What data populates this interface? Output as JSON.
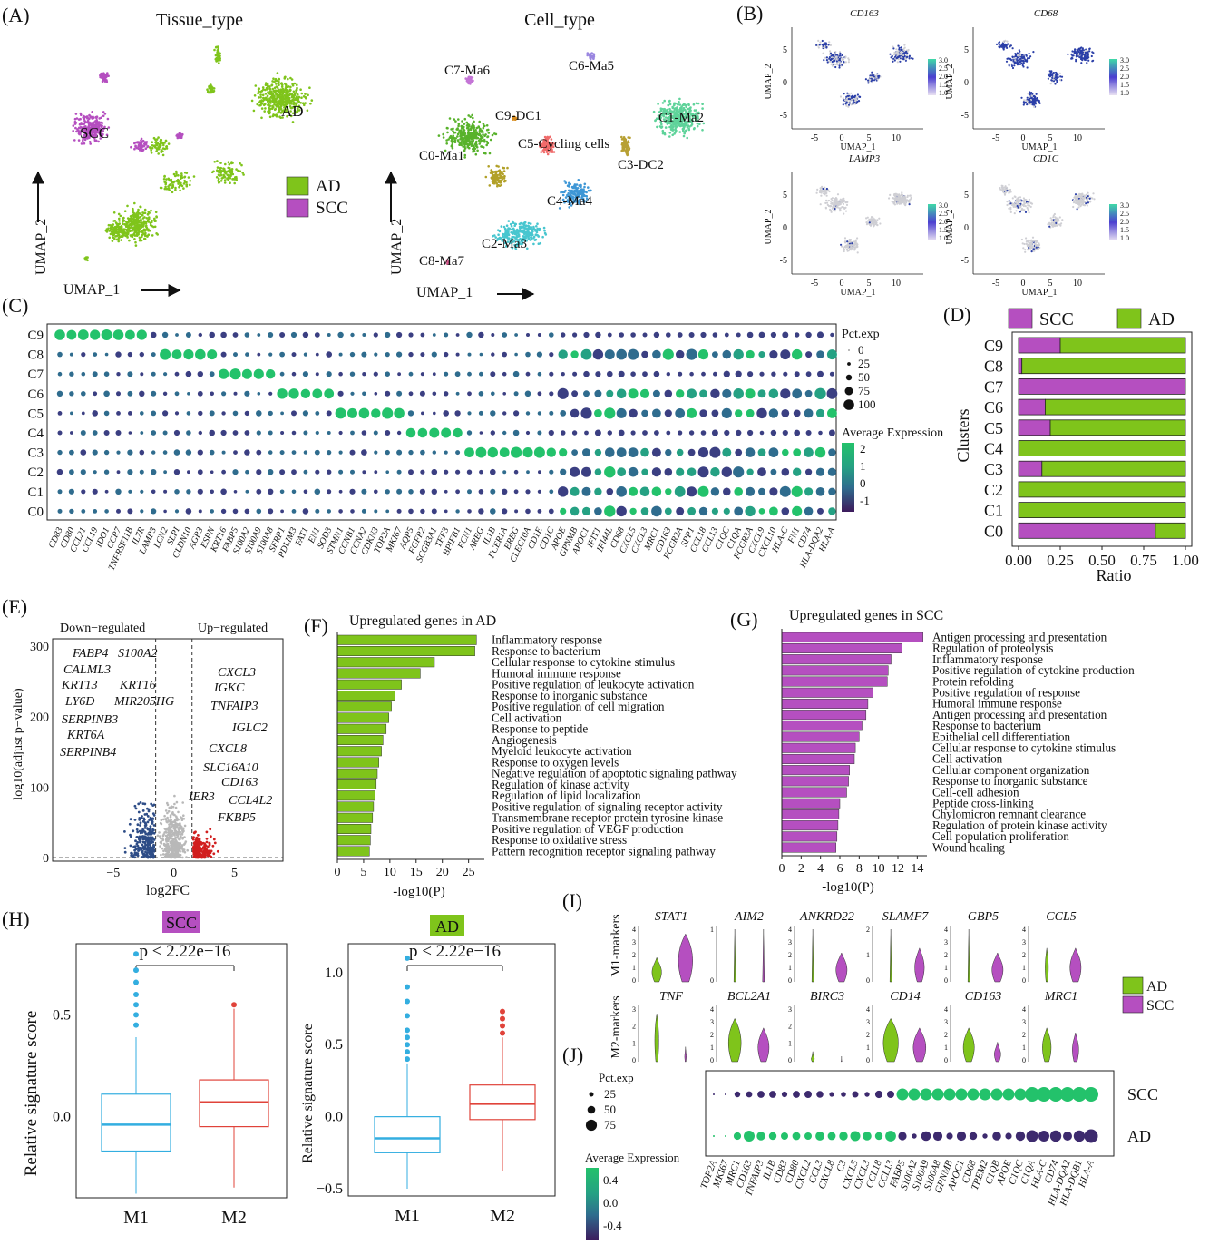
{
  "figure": {
    "panel_labels": [
      "(A)",
      "(B)",
      "(C)",
      "(D)",
      "(E)",
      "(F)",
      "(G)",
      "(H)",
      "(I)",
      "(J)"
    ]
  },
  "colors": {
    "ad": "#7fc41b",
    "scc": "#b54fc0",
    "ad_dark": "#5a8f10",
    "box_m1": "#33aee0",
    "box_m2": "#e0433a",
    "down": "#2e4d87",
    "up": "#d11f1f",
    "ns": "#b8b8b8"
  },
  "chart_data": [
    {
      "id": "A1",
      "type": "scatter",
      "title": "Tissue_type",
      "xlabel": "UMAP_1",
      "ylabel": "UMAP_2",
      "legend": [
        {
          "name": "AD",
          "color": "#7fc41b"
        },
        {
          "name": "SCC",
          "color": "#b54fc0"
        }
      ],
      "annotations": [
        "AD",
        "SCC"
      ]
    },
    {
      "id": "A2",
      "type": "scatter",
      "title": "Cell_type",
      "xlabel": "UMAP_1",
      "ylabel": "UMAP_2",
      "annotations": [
        "C7-Ma6",
        "C6-Ma5",
        "C9-DC1",
        "C1-Ma2",
        "C5-Cycling cells",
        "C0-Ma1",
        "C3-DC2",
        "C4-Ma4",
        "C2-Ma3",
        "C8-Ma7"
      ]
    },
    {
      "id": "B",
      "type": "scatter",
      "panels": [
        {
          "gene": "CD163",
          "shows_xlabel": true,
          "shows_ylabel": true,
          "ratio_shown": 0.5
        },
        {
          "gene": "CD68",
          "shows_xlabel": true,
          "shows_ylabel": true,
          "ratio_shown": 0.85
        },
        {
          "gene": "LAMP3",
          "shows_xlabel": true,
          "shows_ylabel": true,
          "ratio_shown": 0.05
        },
        {
          "gene": "CD1C",
          "shows_xlabel": true,
          "shows_ylabel": true,
          "ratio_shown": 0.1
        }
      ],
      "xlabel": "UMAP_1",
      "ylabel": "UMAP_2",
      "x_ticks": [
        "-5",
        "0",
        "5",
        "10"
      ],
      "y_ticks": [
        "5",
        "0",
        "-5"
      ],
      "colorbar_ticks": [
        "3.0",
        "2.5",
        "2.0",
        "1.5",
        "1.0"
      ]
    },
    {
      "id": "C",
      "type": "scatter",
      "subtype": "dotplot",
      "clusters": [
        "C9",
        "C8",
        "C7",
        "C6",
        "C5",
        "C4",
        "C3",
        "C2",
        "C1",
        "C0"
      ],
      "genes": [
        "CD83",
        "CD80",
        "CCL21",
        "CCL19",
        "IDO1",
        "CCR7",
        "TNFRSF11B",
        "IL7R",
        "LAMP3",
        "LCN2",
        "SLPI",
        "CLDN10",
        "AGR3",
        "ESPN",
        "KRT16",
        "FABP5",
        "S100A2",
        "S100A9",
        "S100A8",
        "SFRP1",
        "PDLIM3",
        "FAT1",
        "EN1",
        "SOD3",
        "STMN1",
        "CCNB1",
        "CCNA2",
        "CDKN3",
        "TOP2A",
        "MKI67",
        "AQP5",
        "FGFR2",
        "SCGB3A1",
        "TFF3",
        "BPIFB1",
        "FCN1",
        "AREG",
        "IL1B",
        "FCER1A",
        "EREG",
        "CLEC10A",
        "CD1E",
        "CD1C",
        "APOE",
        "GPNMB",
        "APOC1",
        "IFIT1",
        "IFI44L",
        "CD68",
        "CXCL5",
        "CXCL3",
        "MRC1",
        "CD163",
        "FCGR2A",
        "SPP1",
        "CCL18",
        "CCL13",
        "C1QC",
        "C1QA",
        "FCGR3A",
        "CXCL9",
        "CXCL10",
        "HLA-C",
        "FN1",
        "CD74",
        "HLA-DQA2",
        "HLA-A"
      ],
      "legend_size_title": "Pct.exp",
      "legend_size_values": [
        "0",
        "25",
        "50",
        "75",
        "100"
      ],
      "legend_color_title": "Average Expression",
      "legend_color_ticks": [
        "2",
        "1",
        "0",
        "-1"
      ]
    },
    {
      "id": "D",
      "type": "bar",
      "orientation": "horizontal",
      "stacked": true,
      "categories": [
        "C9",
        "C8",
        "C7",
        "C6",
        "C5",
        "C4",
        "C3",
        "C2",
        "C1",
        "C0"
      ],
      "series": [
        {
          "name": "SCC",
          "values": [
            0.25,
            0.02,
            1.0,
            0.16,
            0.19,
            0.0,
            0.14,
            0.0,
            0.0,
            0.82
          ]
        },
        {
          "name": "AD",
          "values": [
            0.75,
            0.98,
            0.0,
            0.84,
            0.81,
            1.0,
            0.86,
            1.0,
            1.0,
            0.18
          ]
        }
      ],
      "xlabel": "Ratio",
      "ylabel": "Clusters",
      "x_ticks": [
        "0.00",
        "0.25",
        "0.50",
        "0.75",
        "1.00"
      ],
      "xlim": [
        0,
        1
      ]
    },
    {
      "id": "E",
      "type": "scatter",
      "subtype": "volcano",
      "xlabel": "log2FC",
      "ylabel": "log10(adjust p−value)",
      "x_ticks": [
        "−5",
        "0",
        "5"
      ],
      "y_ticks": [
        "0",
        "100",
        "200",
        "300"
      ],
      "xlim": [
        -10,
        9
      ],
      "ylim": [
        -5,
        310
      ],
      "regions": [
        "Down−regulated",
        "Up−regulated"
      ],
      "down_labels": [
        "FABP4",
        "S100A2",
        "CALML3",
        "KRT13",
        "KRT16",
        "LY6D",
        "MIR205HG",
        "SERPINB3",
        "KRT6A",
        "SERPINB4"
      ],
      "up_labels": [
        "CXCL3",
        "IGKC",
        "TNFAIP3",
        "IGLC2",
        "CXCL8",
        "SLC16A10",
        "CD163",
        "CCL4L2",
        "IER3",
        "FKBP5"
      ]
    },
    {
      "id": "F",
      "type": "bar",
      "orientation": "horizontal",
      "title": "Upregulated genes in AD",
      "xlabel": "-log10(P)",
      "x_ticks": [
        "0",
        "5",
        "10",
        "15",
        "20",
        "25"
      ],
      "xlim": [
        0,
        28
      ],
      "categories": [
        "Inflammatory response",
        "Response to bacterium",
        "Cellular response to cytokine stimulus",
        "Humoral immune response",
        "Positive regulation of leukocyte activation",
        "Response to inorganic substance",
        "Positive regulation of cell migration",
        "Cell activation",
        "Response to peptide",
        "Angiogenesis",
        "Myeloid leukocyte activation",
        "Response to oxygen levels",
        "Negative regulation of apoptotic signaling pathway",
        "Regulation of kinase activity",
        "Regulation of lipid localization",
        "Positive regulation of signaling receptor activity",
        "Transmembrane receptor protein tyrosine kinase",
        "Positive regulation of VEGF production",
        "Response to oxidative stress",
        "Pattern recognition receptor signaling pathway"
      ],
      "values": [
        26.5,
        26.2,
        18.5,
        15.8,
        12.2,
        11.0,
        10.3,
        9.8,
        9.3,
        8.7,
        8.4,
        7.9,
        7.6,
        7.4,
        7.2,
        6.9,
        6.7,
        6.4,
        6.3,
        6.1
      ]
    },
    {
      "id": "G",
      "type": "bar",
      "orientation": "horizontal",
      "title": "Upregulated genes in SCC",
      "xlabel": "-log10(P)",
      "x_ticks": [
        "0",
        "2",
        "4",
        "6",
        "8",
        "10",
        "12",
        "14"
      ],
      "xlim": [
        0,
        15
      ],
      "categories": [
        "Antigen processing and presentation",
        "Regulation of proteolysis",
        "Inflammatory response",
        "Positive regulation of cytokine production",
        "Protein refolding",
        "Positive regulation of response",
        "Humoral immune response",
        "Antigen processing and presentation",
        "Response to bacterium",
        "Epithelial cell differentiation",
        "Cellular response to cytokine stimulus",
        "Cell activation",
        "Cellular component organization",
        "Response to inorganic substance",
        "Cell-cell adhesion",
        "Peptide cross-linking",
        "Chylomicron remnant clearance",
        "Regulation of protein kinase activity",
        "Cell population proliferation",
        "Wound healing"
      ],
      "values": [
        14.6,
        12.4,
        11.3,
        11.0,
        10.9,
        9.4,
        8.9,
        8.7,
        8.3,
        8.0,
        7.6,
        7.5,
        7.0,
        6.9,
        6.7,
        6.0,
        5.9,
        5.8,
        5.7,
        5.6
      ]
    },
    {
      "id": "H1",
      "type": "table",
      "subtype": "boxplot",
      "title": "SCC",
      "ylabel": "Relative signature score",
      "categories": [
        "M1",
        "M2"
      ],
      "annotation": "p < 2.22e−16",
      "y_ticks": [
        "0.0",
        "0.5"
      ],
      "ylim": [
        -0.4,
        0.85
      ],
      "boxes": [
        {
          "name": "M1",
          "min": -0.38,
          "q1": -0.17,
          "median": -0.04,
          "q3": 0.11,
          "max": 0.39,
          "outliers": [
            0.45,
            0.5,
            0.55,
            0.6,
            0.66,
            0.72,
            0.8
          ]
        },
        {
          "name": "M2",
          "min": -0.35,
          "q1": -0.05,
          "median": 0.07,
          "q3": 0.18,
          "max": 0.53,
          "outliers": [
            0.55
          ]
        }
      ]
    },
    {
      "id": "H2",
      "type": "table",
      "subtype": "boxplot",
      "title": "AD",
      "ylabel": "Relative signature score",
      "categories": [
        "M1",
        "M2"
      ],
      "annotation": "p < 2.22e−16",
      "y_ticks": [
        "−0.5",
        "0.0",
        "0.5",
        "1.0"
      ],
      "ylim": [
        -0.55,
        1.2
      ],
      "boxes": [
        {
          "name": "M1",
          "min": -0.5,
          "q1": -0.25,
          "median": -0.15,
          "q3": 0.0,
          "max": 0.37,
          "outliers": [
            0.4,
            0.45,
            0.5,
            0.55,
            0.6,
            0.7,
            0.8,
            0.9,
            1.1
          ]
        },
        {
          "name": "M2",
          "min": -0.38,
          "q1": -0.02,
          "median": 0.09,
          "q3": 0.22,
          "max": 0.55,
          "outliers": [
            0.58,
            0.63,
            0.68,
            0.73
          ]
        }
      ]
    },
    {
      "id": "I",
      "type": "area",
      "subtype": "violin",
      "row_labels": [
        "M1-markers",
        "M2-markers"
      ],
      "genes_m1": [
        "STAT1",
        "AIM2",
        "ANKRD22",
        "SLAMF7",
        "GBP5",
        "CCL5"
      ],
      "genes_m2": [
        "TNF",
        "BCL2A1",
        "BIRC3",
        "CD14",
        "CD163",
        "MRC1"
      ],
      "y_ticks": {
        "STAT1": [
          "4",
          "3",
          "2",
          "1",
          "0"
        ],
        "AIM2": [
          "1",
          "0"
        ],
        "ANKRD22": [
          "4",
          "3",
          "2",
          "1",
          "0"
        ],
        "SLAMF7": [
          "2",
          "1",
          "0"
        ],
        "GBP5": [
          "4",
          "3",
          "2",
          "1",
          "0"
        ],
        "CCL5": [
          "4",
          "3",
          "2",
          "1",
          "0"
        ],
        "TNF": [
          "3",
          "2",
          "1",
          "0"
        ],
        "BCL2A1": [
          "4",
          "3",
          "2",
          "1",
          "0"
        ],
        "BIRC3": [
          "3",
          "2",
          "1",
          "0"
        ],
        "CD14": [
          "4",
          "3",
          "2",
          "1",
          "0"
        ],
        "CD163": [
          "4",
          "3",
          "2",
          "1",
          "0"
        ],
        "MRC1": [
          "4",
          "3",
          "2",
          "1",
          "0"
        ]
      },
      "legend": [
        {
          "name": "AD",
          "color": "#7fc41b"
        },
        {
          "name": "SCC",
          "color": "#b54fc0"
        }
      ]
    },
    {
      "id": "J",
      "type": "scatter",
      "subtype": "dotplot",
      "rows": [
        "SCC",
        "AD"
      ],
      "genes": [
        "TOP2A",
        "MKI67",
        "MRC1",
        "CD163",
        "TNFAIP3",
        "IL1B",
        "CD83",
        "CD80",
        "CXCL2",
        "CCL3",
        "CXCL8",
        "C3",
        "CXCL5",
        "CXCL3",
        "CCL18",
        "CCL13",
        "FABP5",
        "S100A2",
        "S100A9",
        "S100A8",
        "GPNMB",
        "APOC1",
        "CD68",
        "TREM2",
        "C1QB",
        "APOE",
        "C1QC",
        "C1QA",
        "HLA-C",
        "CD74",
        "HLA-DQA2",
        "HLA-DQB1",
        "HLA-A"
      ],
      "legend_size_title": "Pct.exp",
      "legend_size_values": [
        "25",
        "50",
        "75"
      ],
      "legend_color_title": "Average Expression",
      "legend_color_ticks": [
        "0.4",
        "0.0",
        "-0.4"
      ]
    }
  ]
}
